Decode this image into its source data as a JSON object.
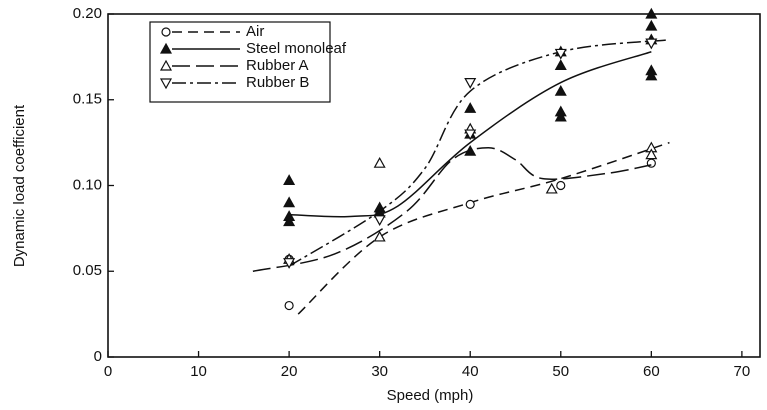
{
  "chart_data": {
    "type": "scatter",
    "x_label": "Speed (mph)",
    "y_label": "Dynamic load coefficient",
    "xlim": [
      0,
      72
    ],
    "ylim": [
      0,
      0.2
    ],
    "xticks": [
      0,
      10,
      20,
      30,
      40,
      50,
      60,
      70
    ],
    "yticks": [
      0,
      0.05,
      {
        "value": 0.1,
        "label": "0.10"
      },
      0.15,
      {
        "value": 0.2,
        "label": "0.20"
      }
    ],
    "legend": "upper left",
    "series": [
      {
        "name": "Air",
        "color": "#111",
        "marker": "circle",
        "dash": "10 6",
        "x": [
          20,
          20,
          30,
          40,
          50,
          60
        ],
        "values": [
          0.03,
          0.057,
          0.085,
          0.089,
          0.1,
          0.113
        ],
        "fit_x": [
          21,
          30,
          40,
          50,
          62
        ],
        "fit_values": [
          0.025,
          0.07,
          0.09,
          0.104,
          0.125
        ]
      },
      {
        "name": "Steel monoleaf",
        "color": "#111",
        "marker": "triangle-filled",
        "dash": "none",
        "x": [
          20,
          20,
          20,
          20,
          30,
          30,
          40,
          40,
          40,
          50,
          50,
          50,
          50,
          50,
          60,
          60,
          60,
          60,
          60
        ],
        "values": [
          0.103,
          0.09,
          0.082,
          0.079,
          0.087,
          0.084,
          0.145,
          0.13,
          0.12,
          0.178,
          0.17,
          0.155,
          0.143,
          0.14,
          0.2,
          0.193,
          0.185,
          0.167,
          0.164
        ],
        "fit_x": [
          20,
          27,
          32,
          40,
          50,
          60
        ],
        "fit_values": [
          0.083,
          0.082,
          0.088,
          0.125,
          0.16,
          0.178
        ]
      },
      {
        "name": "Rubber A",
        "color": "#111",
        "marker": "triangle-open",
        "dash": "18 6",
        "x": [
          20,
          30,
          30,
          40,
          49,
          60,
          60
        ],
        "values": [
          0.057,
          0.113,
          0.07,
          0.133,
          0.098,
          0.122,
          0.118
        ],
        "fit_x": [
          16,
          25,
          33,
          38,
          42,
          45,
          48,
          55,
          60
        ],
        "fit_values": [
          0.05,
          0.06,
          0.085,
          0.115,
          0.122,
          0.115,
          0.104,
          0.107,
          0.112
        ]
      },
      {
        "name": "Rubber B",
        "color": "#111",
        "marker": "triangle-down",
        "dash": "14 4 3 4",
        "x": [
          20,
          30,
          40,
          40,
          50,
          60
        ],
        "values": [
          0.055,
          0.08,
          0.16,
          0.13,
          0.177,
          0.183
        ],
        "fit_x": [
          20,
          30,
          35,
          40,
          50,
          62
        ],
        "fit_values": [
          0.053,
          0.085,
          0.11,
          0.155,
          0.178,
          0.185
        ]
      }
    ]
  }
}
